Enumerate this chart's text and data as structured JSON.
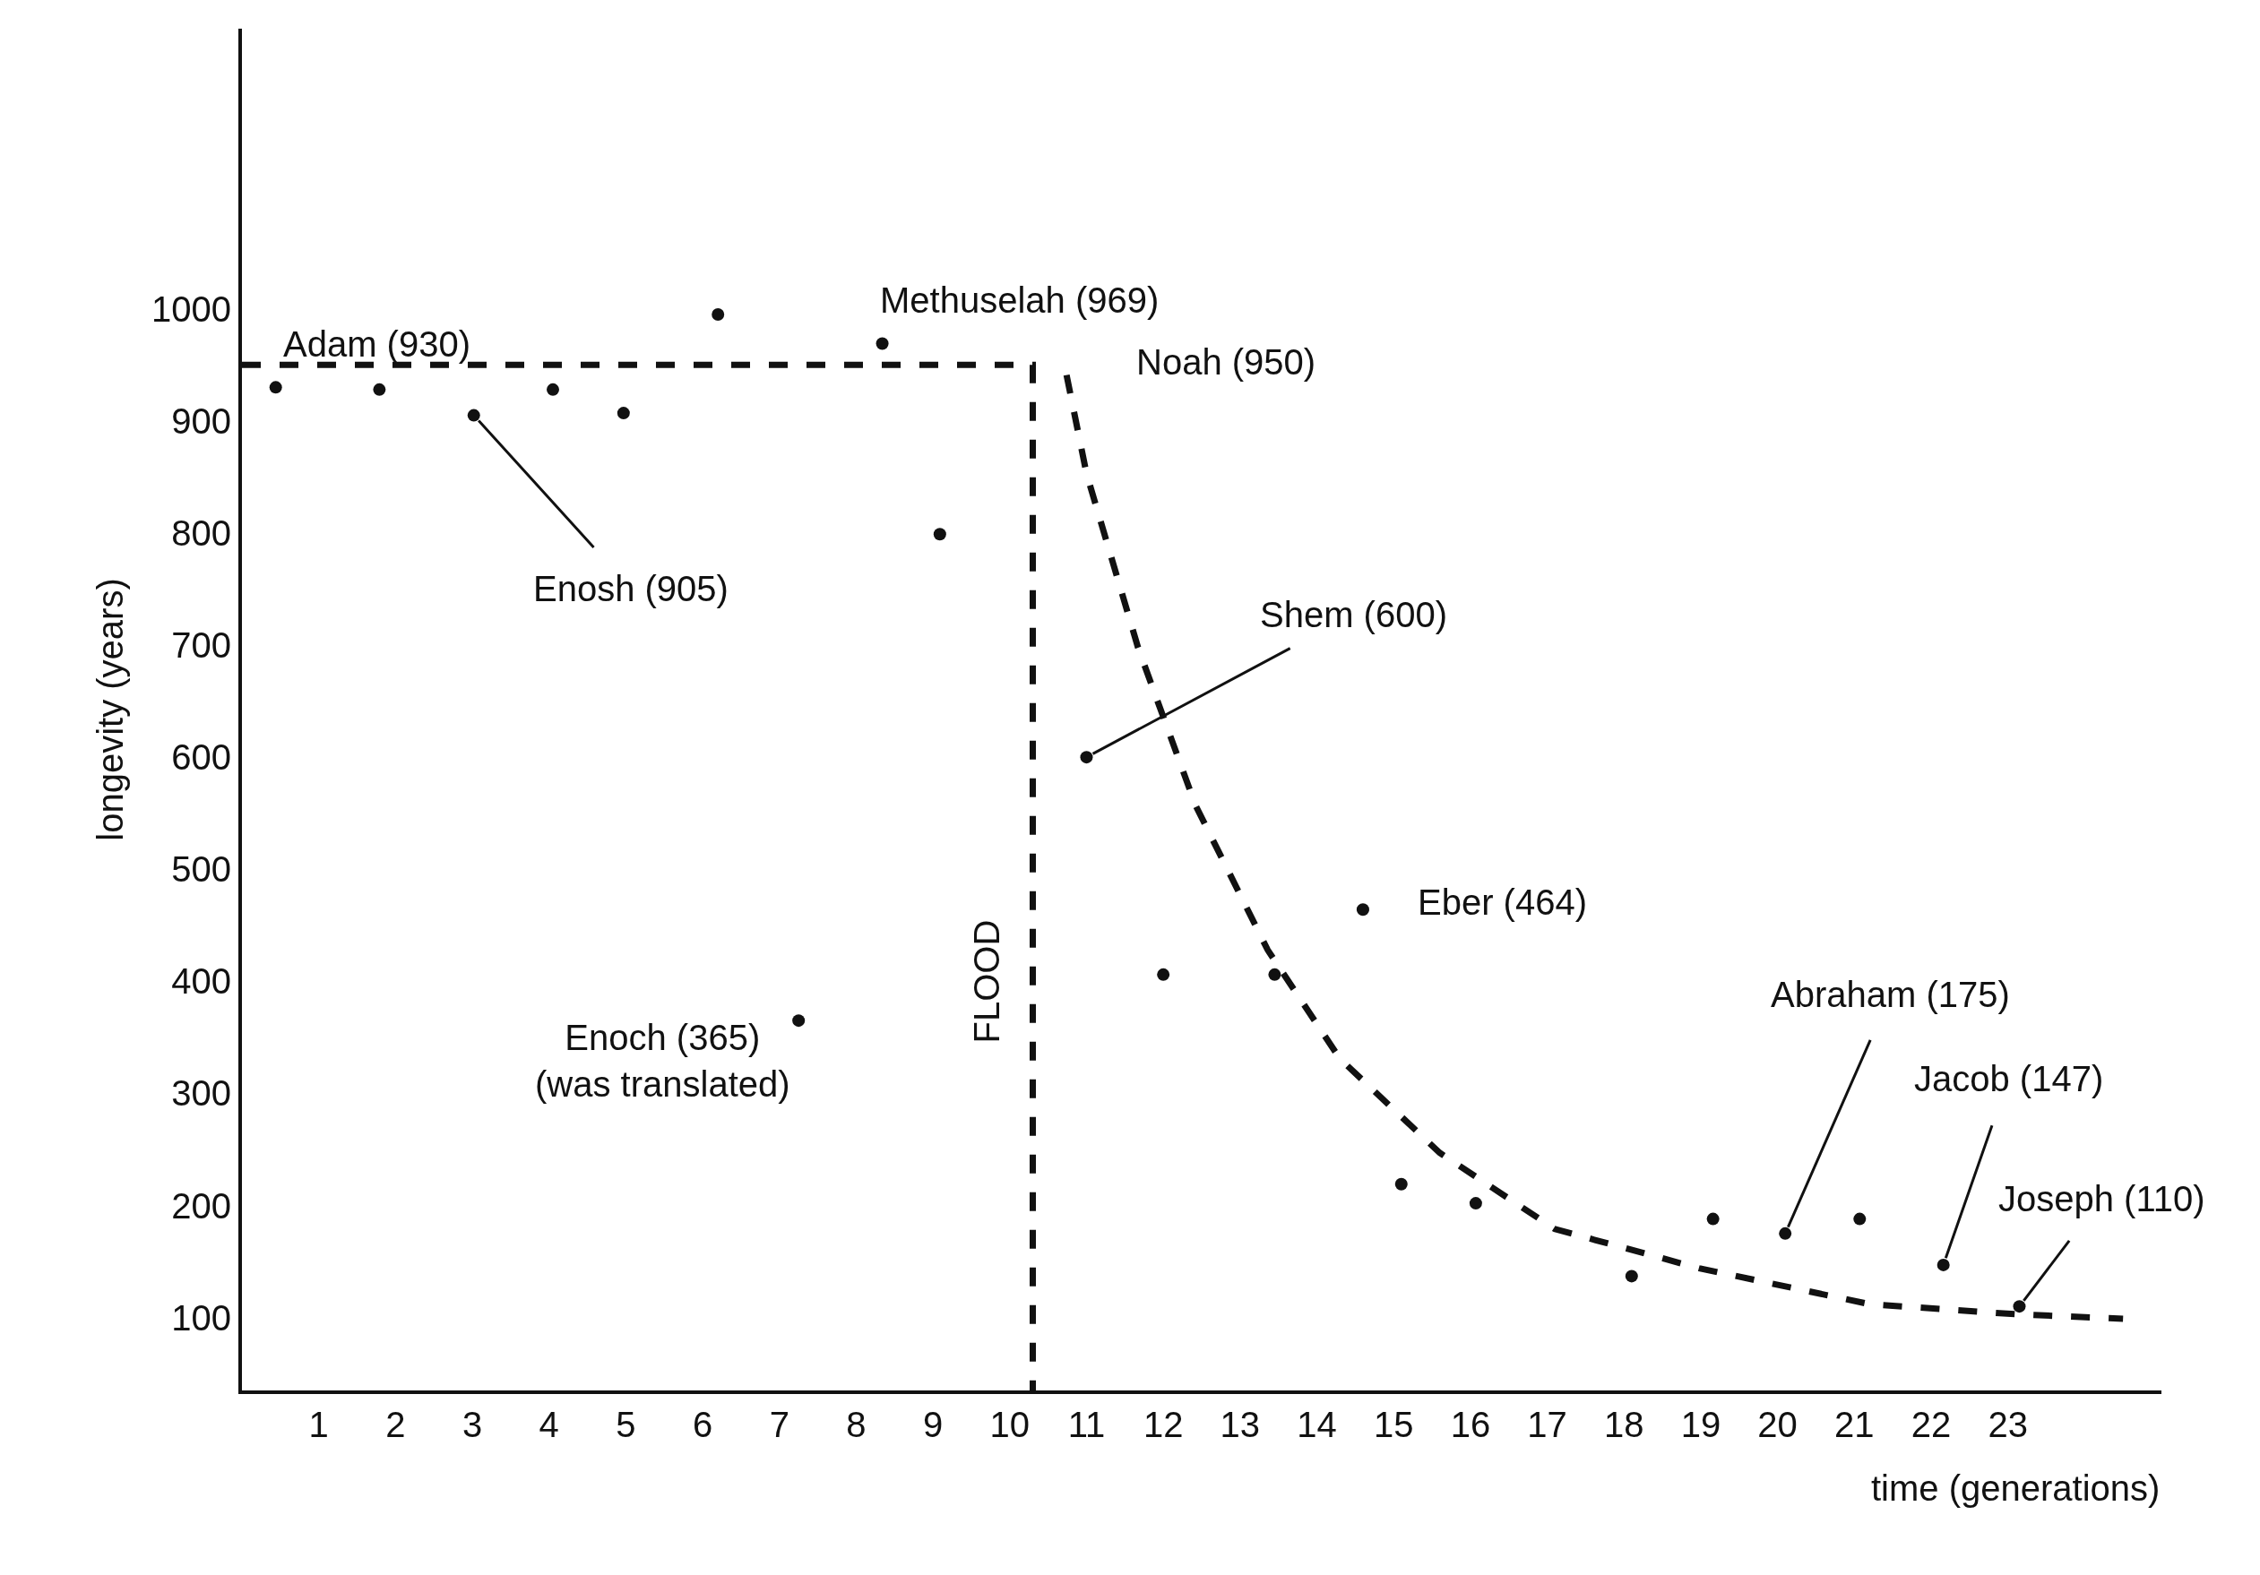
{
  "chart_data": {
    "type": "scatter",
    "xlabel": "time (generations)",
    "ylabel": "longevity (years)",
    "xlim": [
      0,
      25
    ],
    "ylim": [
      35,
      1250
    ],
    "xticks": [
      1,
      2,
      3,
      4,
      5,
      6,
      7,
      8,
      9,
      10,
      11,
      12,
      13,
      14,
      15,
      16,
      17,
      18,
      19,
      20,
      21,
      22,
      23
    ],
    "yticks": [
      100,
      200,
      300,
      400,
      500,
      600,
      700,
      800,
      900,
      1000
    ],
    "series": [
      {
        "marker": "circle",
        "color": "#111111",
        "x": [
          0.44,
          1.79,
          3.02,
          4.05,
          4.97,
          6.2,
          7.25,
          8.34,
          9.09,
          11.0,
          12.0,
          13.45,
          14.6,
          15.1,
          16.07,
          18.1,
          19.16,
          20.1,
          21.07,
          22.16,
          23.15
        ],
        "values": [
          930,
          928,
          905,
          928,
          907,
          995,
          365,
          969,
          799,
          600,
          406,
          406,
          464,
          219,
          202,
          137,
          188,
          175,
          188,
          147,
          110
        ]
      },
      {
        "type": "line",
        "marker": "none",
        "line_style": "dashed",
        "color": "#111111",
        "x": [
          0,
          10.3,
          10.3
        ],
        "values": [
          950,
          950,
          35
        ]
      },
      {
        "type": "line",
        "marker": "none",
        "line_style": "dashed",
        "color": "#111111",
        "x": [
          10.74,
          11.0,
          11.67,
          12.42,
          13.36,
          14.3,
          15.6,
          17.1,
          18.98,
          21.2,
          23.1,
          24.5
        ],
        "values": [
          941,
          853,
          698,
          557,
          428,
          331,
          247,
          179,
          144,
          112,
          103,
          99
        ]
      }
    ],
    "annotations": [
      {
        "text": "Adam (930)",
        "x": 0.44,
        "y": 930
      },
      {
        "text": "Enosh (905)",
        "x": 3.02,
        "y": 905
      },
      {
        "text": "Methuselah (969)",
        "x": 8.34,
        "y": 969
      },
      {
        "text": "Noah (950)",
        "x": 10.3,
        "y": 950
      },
      {
        "text": "Enoch (365)\n(was translated)",
        "x": 7.25,
        "y": 365
      },
      {
        "text": "Shem (600)",
        "x": 11.0,
        "y": 600
      },
      {
        "text": "Eber (464)",
        "x": 14.6,
        "y": 464
      },
      {
        "text": "Abraham (175)",
        "x": 20.1,
        "y": 175
      },
      {
        "text": "Jacob (147)",
        "x": 22.16,
        "y": 147
      },
      {
        "text": "Joseph (110)",
        "x": 23.15,
        "y": 110
      },
      "FLOOD"
    ]
  }
}
